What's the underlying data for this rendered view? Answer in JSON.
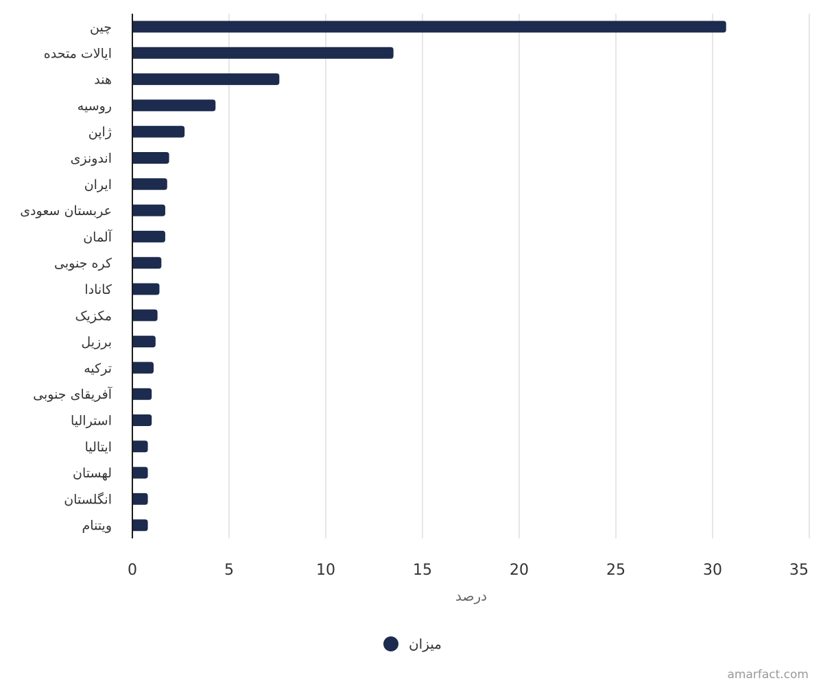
{
  "colors": {
    "bar": "#1c2b4e",
    "grid": "#dddddd",
    "axis": "#1a1a1a"
  },
  "chart_data": {
    "type": "bar",
    "orientation": "horizontal",
    "categories": [
      "چین",
      "ایالات متحده",
      "هند",
      "روسیه",
      "ژاپن",
      "اندونزی",
      "ایران",
      "عربستان سعودی",
      "آلمان",
      "کره جنوبی",
      "کانادا",
      "مکزیک",
      "برزیل",
      "ترکیه",
      "آفریقای جنوبی",
      "استرالیا",
      "ایتالیا",
      "لهستان",
      "انگلستان",
      "ویتنام"
    ],
    "series": [
      {
        "name": "میزان",
        "values": [
          30.7,
          13.5,
          7.6,
          4.3,
          2.7,
          1.9,
          1.8,
          1.7,
          1.7,
          1.5,
          1.4,
          1.3,
          1.2,
          1.1,
          1.0,
          1.0,
          0.8,
          0.8,
          0.8,
          0.8
        ]
      }
    ],
    "xlabel": "درصد",
    "ylabel": "",
    "xlim": [
      0,
      35
    ],
    "xticks": [
      0,
      5,
      10,
      15,
      20,
      25,
      30,
      35
    ],
    "grid": true,
    "legend": "bottom-center"
  },
  "legend": {
    "label": "میزان"
  },
  "watermark": "amarfact.com"
}
